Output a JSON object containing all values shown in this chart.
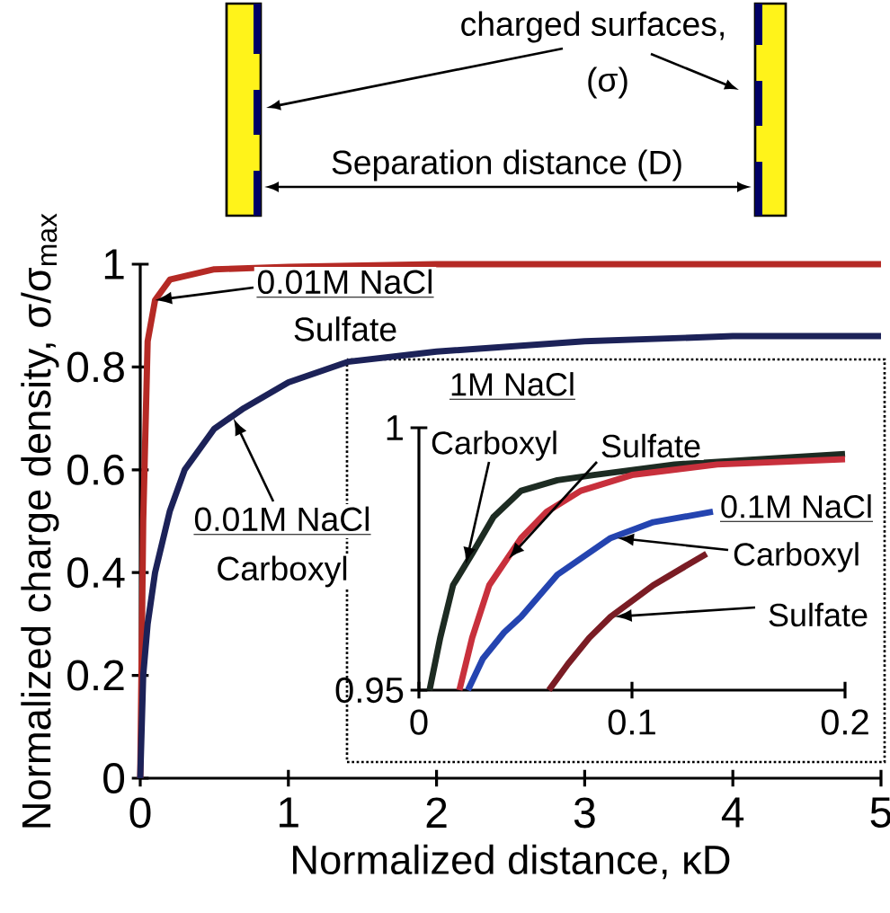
{
  "chart_data": [
    {
      "type": "line",
      "xlabel": "Normalized distance, κD",
      "ylabel": "Normalized charge density, σ/σ$_{max}$",
      "xlim": [
        0,
        5
      ],
      "ylim": [
        0,
        1
      ],
      "xticks": [
        0,
        1,
        2,
        3,
        4,
        5
      ],
      "yticks": [
        0,
        0.2,
        0.4,
        0.6,
        0.8,
        1
      ],
      "series": [
        {
          "color": "#b52a25",
          "x": [
            0,
            0.02,
            0.05,
            0.1,
            0.2,
            0.5,
            1,
            2,
            5
          ],
          "values": [
            0,
            0.5,
            0.85,
            0.93,
            0.97,
            0.99,
            0.995,
            1,
            1
          ]
        },
        {
          "color": "#1c2258",
          "x": [
            0,
            0.02,
            0.05,
            0.1,
            0.2,
            0.3,
            0.5,
            0.7,
            1,
            1.4,
            2,
            3,
            4,
            5
          ],
          "values": [
            0,
            0.2,
            0.3,
            0.4,
            0.52,
            0.6,
            0.68,
            0.72,
            0.77,
            0.81,
            0.83,
            0.85,
            0.86,
            0.86
          ]
        }
      ],
      "annotations": [
        "charged surfaces,",
        "(σ)",
        "Separation distance (D)",
        {
          "text": "0.01M NaCl",
          "x": 0.1,
          "y": 0.93
        },
        "Sulfate",
        {
          "text": "0.01M NaCl",
          "x": 0.63,
          "y": 0.7
        },
        "Carboxyl"
      ]
    },
    {
      "type": "line",
      "xlim": [
        0,
        0.2
      ],
      "ylim": [
        0.95,
        1
      ],
      "xticks": [
        0,
        0.1,
        0.2
      ],
      "yticks": [
        0.95,
        1
      ],
      "series": [
        {
          "color": "#1d2b22",
          "x": [
            0.005,
            0.01,
            0.016,
            0.025,
            0.035,
            0.048,
            0.065,
            0.082,
            0.12,
            0.2
          ],
          "values": [
            0.95,
            0.96,
            0.97,
            0.976,
            0.983,
            0.988,
            0.99,
            0.991,
            0.993,
            0.995
          ]
        },
        {
          "color": "#c8303c",
          "x": [
            0.019,
            0.025,
            0.033,
            0.048,
            0.06,
            0.076,
            0.1,
            0.14,
            0.2
          ],
          "values": [
            0.95,
            0.96,
            0.97,
            0.979,
            0.984,
            0.988,
            0.991,
            0.993,
            0.994
          ]
        },
        {
          "color": "#2444b0",
          "x": [
            0.023,
            0.03,
            0.04,
            0.048,
            0.065,
            0.09,
            0.11,
            0.138
          ],
          "values": [
            0.95,
            0.956,
            0.961,
            0.964,
            0.972,
            0.979,
            0.982,
            0.984
          ]
        },
        {
          "color": "#7a1c24",
          "x": [
            0.061,
            0.07,
            0.08,
            0.09,
            0.11,
            0.135
          ],
          "values": [
            0.95,
            0.955,
            0.96,
            0.964,
            0.97,
            0.976
          ]
        }
      ],
      "annotations": [
        "1M NaCl",
        {
          "text": "Carboxyl",
          "x": 0.022,
          "y": 0.974
        },
        {
          "text": "Sulfate",
          "x": 0.042,
          "y": 0.975
        },
        "0.1M NaCl",
        {
          "text": "Carboxyl",
          "x": 0.093,
          "y": 0.979
        },
        {
          "text": "Sulfate",
          "x": 0.092,
          "y": 0.964
        }
      ]
    }
  ]
}
